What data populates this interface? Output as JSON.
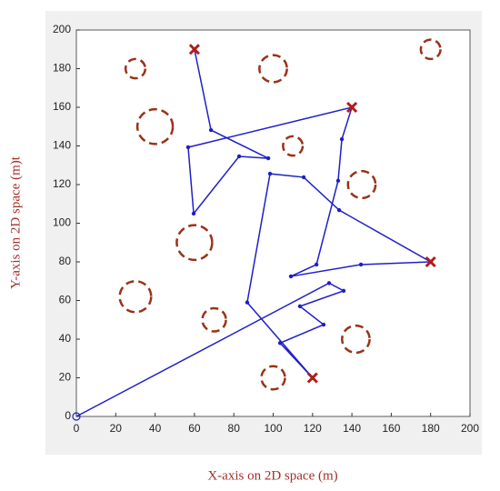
{
  "chart_data": {
    "type": "line",
    "xlabel": "X-axis on 2D space (m)",
    "ylabel": "Y-axis on 2D space (m)t",
    "x": [
      0,
      128.4,
      135.8,
      113.6,
      125.6,
      103.5,
      120,
      86.8,
      98.4,
      115.5,
      133.5,
      180,
      144.6,
      109,
      122,
      133,
      134.9,
      140,
      56.8,
      59.6,
      82.7,
      97.5,
      68.4,
      60
    ],
    "values": [
      0,
      69,
      65,
      57,
      47.5,
      38,
      20,
      59,
      125.6,
      123.8,
      106.8,
      80,
      78.6,
      72.5,
      78.6,
      122,
      143.5,
      160,
      139.3,
      105,
      134.6,
      133.6,
      148.2,
      190
    ],
    "color": "#1f1fc8",
    "targets": {
      "x": [
        60,
        140,
        180,
        120
      ],
      "y": [
        190,
        160,
        80,
        20
      ],
      "color": "#b01c1c"
    },
    "obstacles": {
      "x": [
        30,
        100,
        180,
        40,
        110,
        145,
        60,
        30,
        70,
        142,
        100
      ],
      "y": [
        180,
        180,
        190,
        150,
        140,
        120,
        90,
        62,
        50,
        40,
        20
      ],
      "r": [
        5,
        7,
        5,
        9,
        5,
        7,
        9,
        8,
        6,
        7,
        6
      ],
      "color": "#9a3218"
    },
    "xlim": [
      0,
      200
    ],
    "ylim": [
      0,
      200
    ],
    "xticks": [
      0,
      20,
      40,
      60,
      80,
      100,
      120,
      140,
      160,
      180,
      200
    ],
    "yticks": [
      0,
      20,
      40,
      60,
      80,
      100,
      120,
      140,
      160,
      180,
      200
    ]
  }
}
